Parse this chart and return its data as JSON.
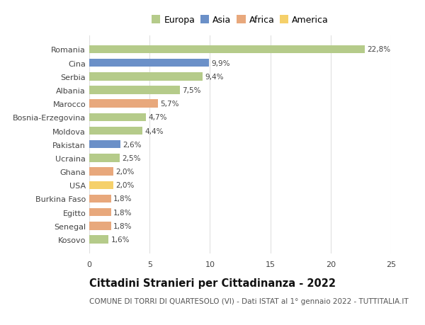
{
  "countries": [
    "Romania",
    "Cina",
    "Serbia",
    "Albania",
    "Marocco",
    "Bosnia-Erzegovina",
    "Moldova",
    "Pakistan",
    "Ucraina",
    "Ghana",
    "USA",
    "Burkina Faso",
    "Egitto",
    "Senegal",
    "Kosovo"
  ],
  "values": [
    22.8,
    9.9,
    9.4,
    7.5,
    5.7,
    4.7,
    4.4,
    2.6,
    2.5,
    2.0,
    2.0,
    1.8,
    1.8,
    1.8,
    1.6
  ],
  "labels": [
    "22,8%",
    "9,9%",
    "9,4%",
    "7,5%",
    "5,7%",
    "4,7%",
    "4,4%",
    "2,6%",
    "2,5%",
    "2,0%",
    "2,0%",
    "1,8%",
    "1,8%",
    "1,8%",
    "1,6%"
  ],
  "continent": [
    "Europa",
    "Asia",
    "Europa",
    "Europa",
    "Africa",
    "Europa",
    "Europa",
    "Asia",
    "Europa",
    "Africa",
    "America",
    "Africa",
    "Africa",
    "Africa",
    "Europa"
  ],
  "colors": {
    "Europa": "#b5cb8a",
    "Asia": "#6b90c8",
    "Africa": "#e8a87c",
    "America": "#f5d06a"
  },
  "legend_order": [
    "Europa",
    "Asia",
    "Africa",
    "America"
  ],
  "title": "Cittadini Stranieri per Cittadinanza - 2022",
  "subtitle": "COMUNE DI TORRI DI QUARTESOLO (VI) - Dati ISTAT al 1° gennaio 2022 - TUTTITALIA.IT",
  "xlim": [
    0,
    25
  ],
  "xticks": [
    0,
    5,
    10,
    15,
    20,
    25
  ],
  "background_color": "#ffffff",
  "grid_color": "#e0e0e0",
  "bar_height": 0.6,
  "title_fontsize": 10.5,
  "subtitle_fontsize": 7.5,
  "label_fontsize": 7.5,
  "tick_fontsize": 8,
  "legend_fontsize": 9
}
